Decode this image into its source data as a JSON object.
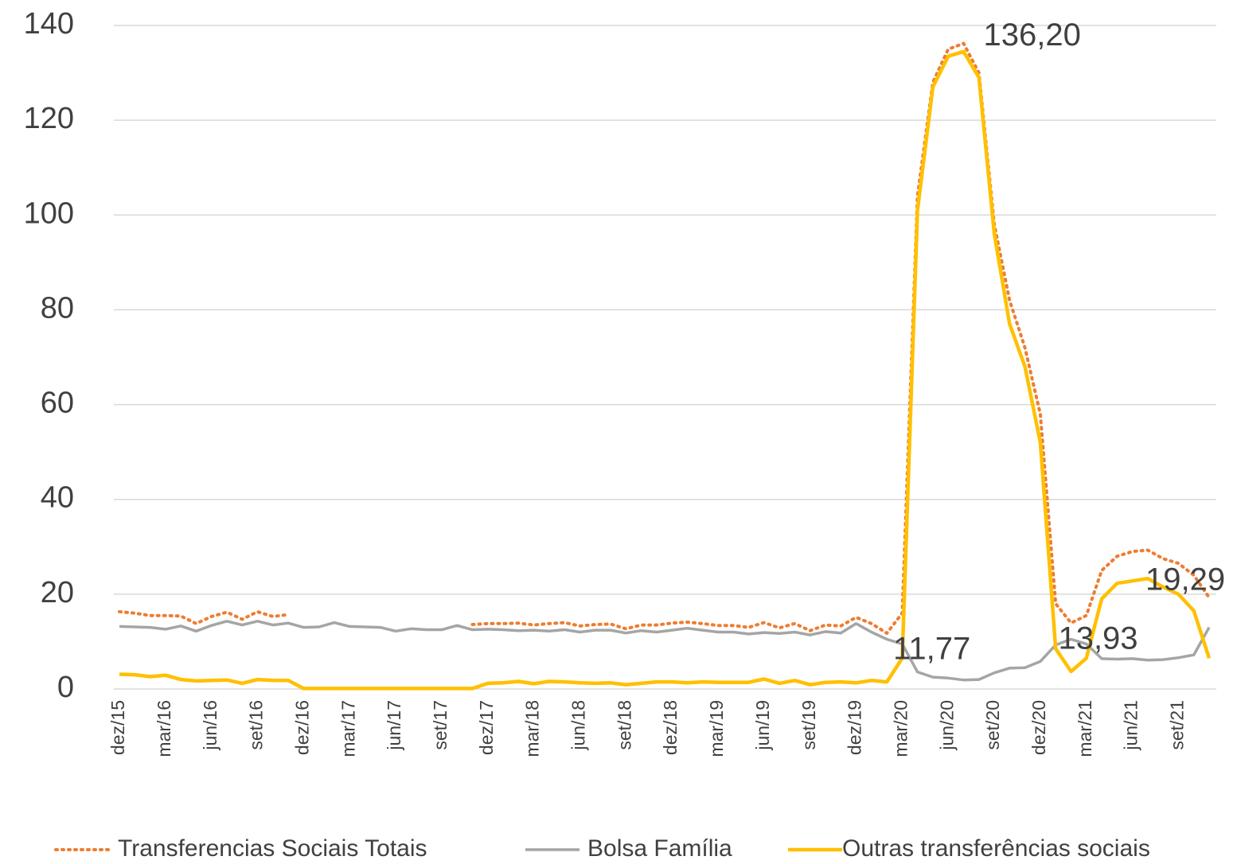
{
  "chart_data": {
    "type": "line",
    "categories": [
      "dez/15",
      null,
      null,
      "mar/16",
      null,
      null,
      "jun/16",
      null,
      null,
      "set/16",
      null,
      null,
      "dez/16",
      null,
      null,
      "mar/17",
      null,
      null,
      "jun/17",
      null,
      null,
      "set/17",
      null,
      null,
      "dez/17",
      null,
      null,
      "mar/18",
      null,
      null,
      "jun/18",
      null,
      null,
      "set/18",
      null,
      null,
      "dez/18",
      null,
      null,
      "mar/19",
      null,
      null,
      "jun/19",
      null,
      null,
      "set/19",
      null,
      null,
      "dez/19",
      null,
      null,
      "mar/20",
      null,
      null,
      "jun/20",
      null,
      null,
      "set/20",
      null,
      null,
      "dez/20",
      null,
      null,
      "mar/21",
      null,
      null,
      "jun/21",
      null,
      null,
      "set/21",
      null,
      null
    ],
    "ylim": [
      0,
      140
    ],
    "yticks": [
      0,
      20,
      40,
      60,
      80,
      100,
      120,
      140
    ],
    "grid": true,
    "legend": "bottom",
    "series": [
      {
        "name": "Transferencias Sociais Totais",
        "color": "#ED7D31",
        "dash": "dotted",
        "values": [
          16.3,
          16.0,
          15.5,
          15.5,
          15.4,
          13.8,
          15.3,
          16.2,
          14.7,
          16.3,
          15.3,
          15.7,
          null,
          null,
          null,
          null,
          null,
          null,
          null,
          null,
          null,
          null,
          null,
          13.6,
          13.8,
          13.8,
          13.9,
          13.5,
          13.8,
          14.0,
          13.3,
          13.6,
          13.7,
          12.7,
          13.5,
          13.5,
          13.9,
          14.1,
          13.8,
          13.4,
          13.4,
          13.0,
          14.0,
          12.9,
          13.8,
          12.3,
          13.5,
          13.3,
          15.1,
          13.8,
          11.77,
          16.0,
          104,
          128,
          135,
          136.2,
          130,
          98,
          82,
          72,
          58,
          18,
          13.93,
          15.5,
          25,
          28,
          29,
          29.3,
          27.5,
          26.5,
          24,
          19.29
        ],
        "value_labels": [
          null,
          null,
          null,
          null,
          null,
          null,
          null,
          null,
          null,
          null,
          null,
          null,
          null,
          null,
          null,
          null,
          null,
          null,
          null,
          null,
          null,
          null,
          null,
          null,
          null,
          null,
          null,
          null,
          null,
          null,
          null,
          null,
          null,
          null,
          null,
          null,
          null,
          null,
          null,
          null,
          null,
          null,
          null,
          null,
          null,
          null,
          null,
          null,
          null,
          null,
          "11,77",
          null,
          null,
          null,
          null,
          "136,20",
          null,
          null,
          null,
          null,
          null,
          null,
          "13,93",
          null,
          null,
          null,
          null,
          null,
          null,
          null,
          null,
          "19,29"
        ]
      },
      {
        "name": "Bolsa Família",
        "color": "#A5A5A5",
        "values": [
          13.2,
          13.1,
          13.0,
          12.6,
          13.3,
          12.2,
          13.4,
          14.3,
          13.5,
          14.3,
          13.5,
          13.9,
          13.0,
          13.1,
          14.0,
          13.2,
          13.1,
          13.0,
          12.2,
          12.7,
          12.5,
          12.5,
          13.4,
          12.5,
          12.6,
          12.5,
          12.3,
          12.4,
          12.2,
          12.5,
          12.0,
          12.4,
          12.4,
          11.8,
          12.3,
          12.0,
          12.4,
          12.8,
          12.4,
          12.0,
          12.0,
          11.6,
          11.9,
          11.7,
          12.0,
          11.4,
          12.1,
          11.8,
          13.8,
          12.0,
          10.5,
          9.5,
          3.6,
          2.5,
          2.3,
          1.9,
          2.0,
          3.4,
          4.4,
          4.5,
          5.8,
          9.3,
          10.5,
          9.5,
          6.4,
          6.3,
          6.4,
          6.1,
          6.2,
          6.6,
          7.2,
          13.0
        ]
      },
      {
        "name": "Outras transferências sociais",
        "color": "#FFC000",
        "values": [
          3.1,
          3.0,
          2.6,
          2.9,
          2.0,
          1.7,
          1.8,
          1.9,
          1.2,
          2.0,
          1.8,
          1.8,
          0.1,
          0.1,
          0.1,
          0.1,
          0.1,
          0.1,
          0.1,
          0.1,
          0.1,
          0.1,
          0.1,
          0.1,
          1.2,
          1.3,
          1.6,
          1.1,
          1.6,
          1.5,
          1.3,
          1.2,
          1.3,
          0.9,
          1.2,
          1.5,
          1.5,
          1.3,
          1.5,
          1.4,
          1.4,
          1.4,
          2.1,
          1.2,
          1.8,
          0.9,
          1.4,
          1.5,
          1.3,
          1.8,
          1.5,
          6.5,
          101,
          127,
          133.5,
          134.5,
          129,
          96,
          77,
          68,
          52,
          8.5,
          3.7,
          6.5,
          19,
          22.3,
          22.8,
          23.3,
          21.5,
          20,
          16.5,
          6.5
        ]
      }
    ]
  }
}
